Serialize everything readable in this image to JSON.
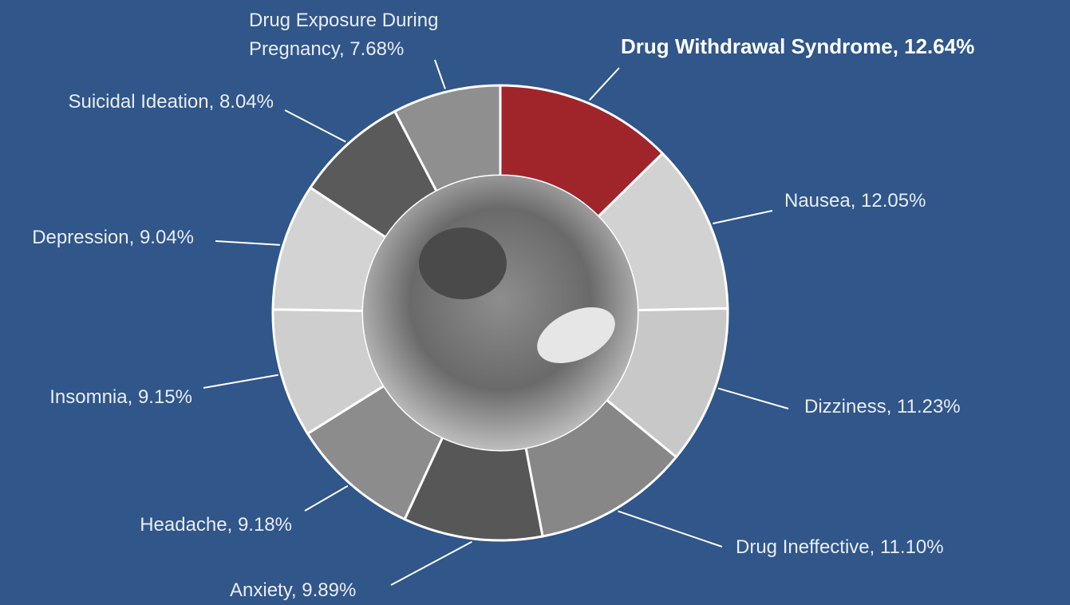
{
  "chart_data": {
    "type": "pie",
    "value_labels": [
      "Drug Withdrawal Syndrome, 12.64%",
      "Nausea, 12.05%",
      "Dizziness, 11.23%",
      "Drug Ineffective, 11.10%",
      "Anxiety, 9.89%",
      "Headache, 9.18%",
      "Insomnia, 9.15%",
      "Depression, 9.04%",
      "Suicidal Ideation, 8.04%",
      "Drug Exposure During Pregnancy, 7.68%"
    ],
    "values": [
      12.64,
      12.05,
      11.23,
      11.1,
      9.89,
      9.18,
      9.15,
      9.04,
      8.04,
      7.68
    ],
    "colors": [
      "#a0252a",
      "#d3d2d2",
      "#c9c8c8",
      "#878787",
      "#575757",
      "#8c8c8c",
      "#cfcece",
      "#d4d3d3",
      "#5a5a5a",
      "#8f8f8f"
    ],
    "highlight": 0
  }
}
